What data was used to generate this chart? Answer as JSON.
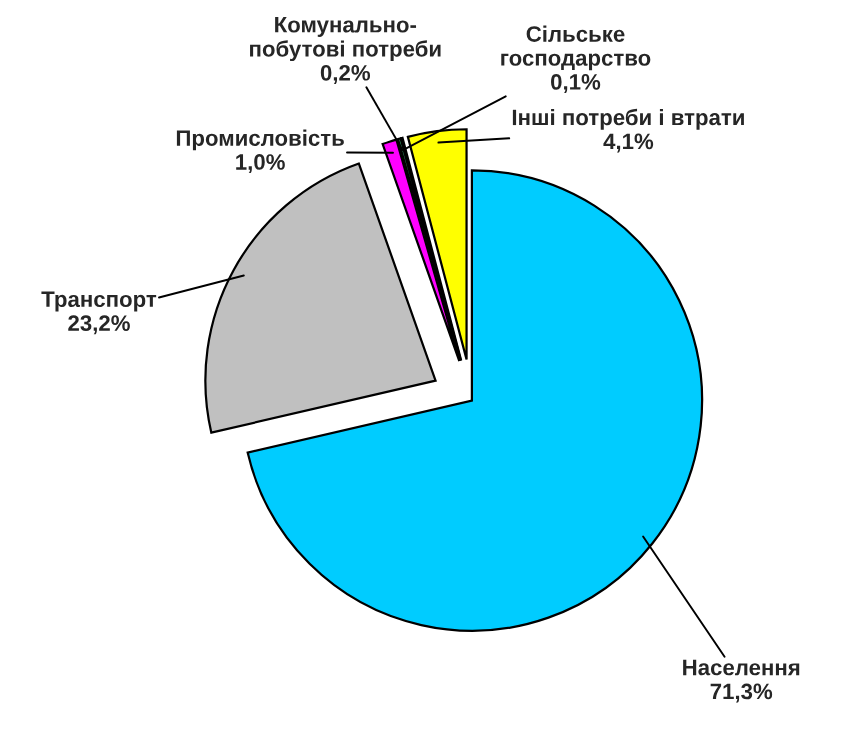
{
  "chart_data": {
    "type": "pie",
    "categories": [
      "Населення",
      "Транспорт",
      "Промисловість",
      "Комунально-\nпобутові потреби",
      "Сільське\nгосподарство",
      "Інші потреби і втрати"
    ],
    "values": [
      71.3,
      23.2,
      1.0,
      0.2,
      0.1,
      4.1
    ],
    "value_labels": [
      "71,3%",
      "23,2%",
      "1,0%",
      "0,2%",
      "0,1%",
      "4,1%"
    ],
    "colors": [
      "#00ccff",
      "#c0c0c0",
      "#ff00ff",
      "#339966",
      "#000000",
      "#ffff00"
    ],
    "legend": false
  }
}
